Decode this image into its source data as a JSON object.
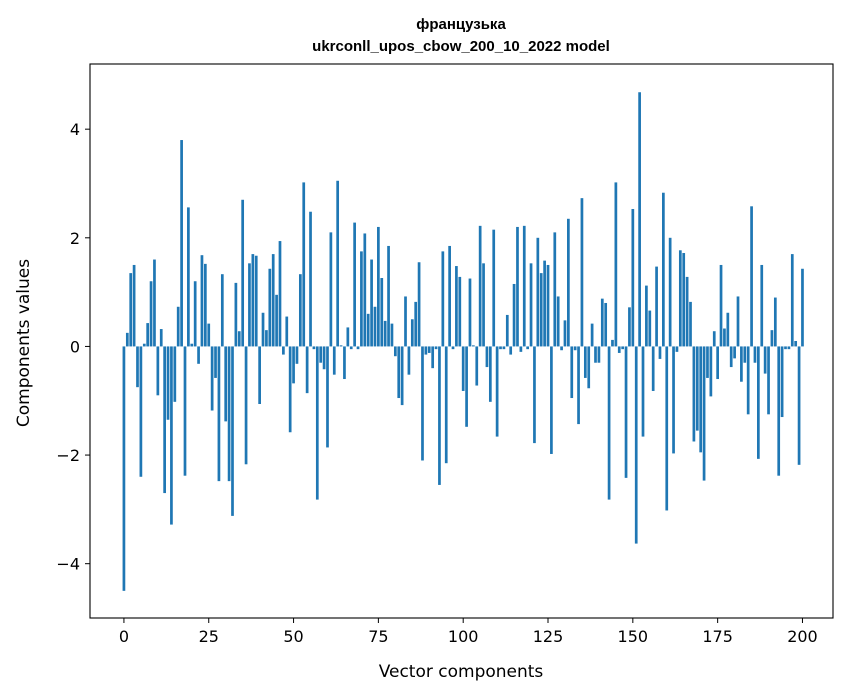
{
  "chart_data": {
    "type": "bar",
    "title_line1": "французька",
    "title_line2": "ukrconll_upos_cbow_200_10_2022 model",
    "xlabel": "Vector components",
    "ylabel": "Components values",
    "xlim": [
      -10,
      209
    ],
    "ylim": [
      -5.0,
      5.2
    ],
    "xticks": [
      0,
      25,
      50,
      75,
      100,
      125,
      150,
      175,
      200
    ],
    "xtick_labels": [
      "0",
      "25",
      "50",
      "75",
      "100",
      "125",
      "150",
      "175",
      "200"
    ],
    "yticks": [
      -4,
      -2,
      0,
      2,
      4
    ],
    "ytick_labels": [
      "−4",
      "−2",
      "0",
      "2",
      "4"
    ],
    "grid": false,
    "bar_color": "#1f77b4",
    "values": [
      -4.5,
      0.25,
      1.35,
      1.5,
      -0.75,
      -2.4,
      0.05,
      0.43,
      1.2,
      1.6,
      -0.9,
      0.32,
      -2.7,
      -1.35,
      -3.28,
      -1.02,
      0.73,
      3.8,
      -2.38,
      2.56,
      0.05,
      1.2,
      -0.32,
      1.68,
      1.52,
      0.42,
      -1.18,
      -0.58,
      -2.48,
      1.33,
      -1.38,
      -2.48,
      -3.12,
      1.17,
      0.28,
      2.7,
      -2.17,
      1.53,
      1.7,
      1.67,
      -1.06,
      0.62,
      0.3,
      1.43,
      1.7,
      0.95,
      1.94,
      -0.15,
      0.55,
      -1.58,
      -0.68,
      -0.32,
      1.33,
      3.02,
      -0.86,
      2.48,
      -0.05,
      -2.82,
      -0.3,
      -0.42,
      -1.86,
      2.1,
      -0.52,
      3.05,
      0.02,
      -0.6,
      0.35,
      -0.05,
      2.28,
      -0.05,
      1.75,
      2.08,
      0.6,
      1.6,
      0.73,
      2.2,
      1.26,
      0.47,
      1.85,
      0.42,
      -0.18,
      -0.95,
      -1.08,
      0.92,
      -0.52,
      0.5,
      0.82,
      1.55,
      -2.1,
      -0.15,
      -0.12,
      -0.4,
      -0.05,
      -2.55,
      1.75,
      -2.15,
      1.85,
      -0.05,
      1.48,
      1.28,
      -0.82,
      -1.48,
      1.25,
      0.02,
      -0.72,
      2.22,
      1.53,
      -0.38,
      -1.02,
      2.15,
      -1.66,
      -0.05,
      -0.05,
      0.58,
      -0.15,
      1.15,
      2.2,
      -0.1,
      2.22,
      -0.05,
      1.53,
      -1.78,
      2.0,
      1.35,
      1.58,
      1.5,
      -1.98,
      2.1,
      0.92,
      -0.07,
      0.48,
      2.35,
      -0.95,
      -0.07,
      -1.43,
      2.73,
      -0.58,
      -0.77,
      0.42,
      -0.3,
      -0.3,
      0.88,
      0.8,
      -2.82,
      0.12,
      3.02,
      -0.12,
      -0.05,
      -2.42,
      0.72,
      2.53,
      -3.63,
      4.68,
      -1.66,
      1.12,
      0.66,
      -0.82,
      1.47,
      -0.23,
      2.83,
      -3.02,
      2.0,
      -1.97,
      -0.1,
      1.77,
      1.72,
      1.28,
      0.82,
      -1.75,
      -1.55,
      -1.95,
      -2.47,
      -0.58,
      -0.92,
      0.28,
      -0.6,
      1.5,
      0.33,
      0.62,
      -0.38,
      -0.22,
      0.92,
      -0.65,
      -0.3,
      -1.25,
      2.58,
      -0.3,
      -2.07,
      1.5,
      -0.5,
      -1.25,
      0.3,
      0.9,
      -2.38,
      -1.3,
      -0.05,
      -0.05,
      1.7,
      0.1,
      -2.18,
      1.43
    ]
  }
}
